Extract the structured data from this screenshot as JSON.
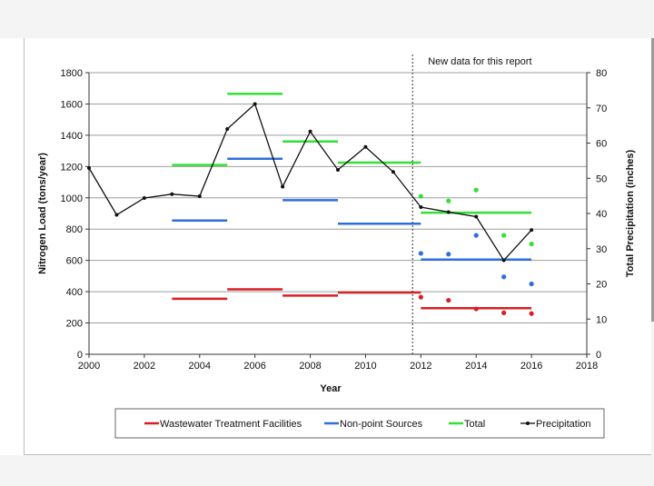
{
  "colors": {
    "wastewater": "#d91f26",
    "nonpoint": "#2e6fdc",
    "total": "#33e033",
    "precip": "#111111",
    "grid": "#9e9e9e"
  },
  "chart_data": {
    "type": "line",
    "annotation": "New data for this report",
    "annotation_x": 2011.7,
    "xlabel": "Year",
    "ylabel": "Nitrogen Load (tons/year)",
    "y2label": "Total Precipitation (inches)",
    "xlim": [
      2000,
      2018
    ],
    "ylim": [
      0,
      1800
    ],
    "y2lim": [
      0,
      80
    ],
    "xticks": [
      "2000",
      "2002",
      "2004",
      "2006",
      "2008",
      "2010",
      "2012",
      "2014",
      "2016",
      "2018"
    ],
    "yticks": [
      "0",
      "200",
      "400",
      "600",
      "800",
      "1000",
      "1200",
      "1400",
      "1600",
      "1800"
    ],
    "y2ticks": [
      "0",
      "10",
      "20",
      "30",
      "40",
      "50",
      "60",
      "70",
      "80"
    ],
    "grid": "horizontal",
    "legend_position": "bottom",
    "legend": [
      {
        "name": "Wastewater Treatment Facilities",
        "key": "wastewater",
        "style": "line"
      },
      {
        "name": "Non-point Sources",
        "key": "nonpoint",
        "style": "line"
      },
      {
        "name": "Total",
        "key": "total",
        "style": "line"
      },
      {
        "name": "Precipitation",
        "key": "precip",
        "style": "line-marker"
      }
    ],
    "series": [
      {
        "name": "Wastewater Treatment Facilities",
        "key": "wastewater",
        "segments": [
          {
            "x": [
              2003,
              2005
            ],
            "y": 355
          },
          {
            "x": [
              2005,
              2007
            ],
            "y": 415
          },
          {
            "x": [
              2007,
              2009
            ],
            "y": 375
          },
          {
            "x": [
              2009,
              2012
            ],
            "y": 395
          },
          {
            "x": [
              2012,
              2016
            ],
            "y": 295
          }
        ],
        "points": [
          {
            "x": 2012,
            "y": 365
          },
          {
            "x": 2013,
            "y": 345
          },
          {
            "x": 2014,
            "y": 290
          },
          {
            "x": 2015,
            "y": 265
          },
          {
            "x": 2016,
            "y": 260
          }
        ]
      },
      {
        "name": "Non-point Sources",
        "key": "nonpoint",
        "segments": [
          {
            "x": [
              2003,
              2005
            ],
            "y": 855
          },
          {
            "x": [
              2005,
              2007
            ],
            "y": 1250
          },
          {
            "x": [
              2007,
              2009
            ],
            "y": 985
          },
          {
            "x": [
              2009,
              2012
            ],
            "y": 835
          },
          {
            "x": [
              2012,
              2016
            ],
            "y": 605
          }
        ],
        "points": [
          {
            "x": 2012,
            "y": 645
          },
          {
            "x": 2013,
            "y": 640
          },
          {
            "x": 2014,
            "y": 760
          },
          {
            "x": 2015,
            "y": 495
          },
          {
            "x": 2016,
            "y": 450
          }
        ]
      },
      {
        "name": "Total",
        "key": "total",
        "segments": [
          {
            "x": [
              2003,
              2005
            ],
            "y": 1210
          },
          {
            "x": [
              2005,
              2007
            ],
            "y": 1665
          },
          {
            "x": [
              2007,
              2009
            ],
            "y": 1360
          },
          {
            "x": [
              2009,
              2012
            ],
            "y": 1225
          },
          {
            "x": [
              2012,
              2016
            ],
            "y": 905
          }
        ],
        "points": [
          {
            "x": 2012,
            "y": 1010
          },
          {
            "x": 2013,
            "y": 980
          },
          {
            "x": 2014,
            "y": 1050
          },
          {
            "x": 2015,
            "y": 760
          },
          {
            "x": 2016,
            "y": 705
          }
        ]
      },
      {
        "name": "Precipitation",
        "key": "precip",
        "axis": "right",
        "x": [
          2000,
          2001,
          2002,
          2003,
          2004,
          2005,
          2006,
          2007,
          2008,
          2009,
          2010,
          2011,
          2012,
          2013,
          2014,
          2015,
          2016
        ],
        "y": [
          52.9,
          39.6,
          44.4,
          45.5,
          44.9,
          64.0,
          71.1,
          47.6,
          63.3,
          52.4,
          58.9,
          51.8,
          41.8,
          40.4,
          39.1,
          26.7,
          35.3
        ]
      }
    ]
  }
}
